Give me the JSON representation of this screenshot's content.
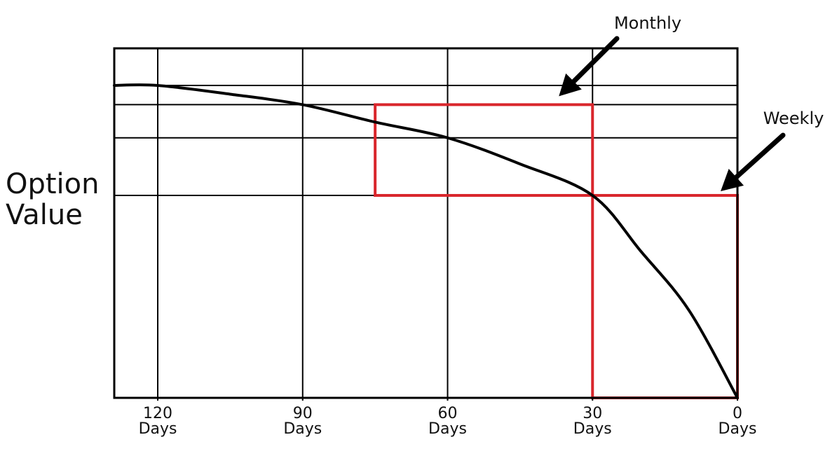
{
  "chart_data": {
    "type": "line",
    "xlabel": "",
    "ylabel": [
      "Option",
      "Value"
    ],
    "x_axis": {
      "direction": "decreasing",
      "ticks": [
        {
          "value": 120,
          "unit": "Days"
        },
        {
          "value": 90,
          "unit": "Days"
        },
        {
          "value": 60,
          "unit": "Days"
        },
        {
          "value": 30,
          "unit": "Days"
        },
        {
          "value": 0,
          "unit": "Days"
        }
      ],
      "xlim": [
        129,
        0
      ]
    },
    "y_axis": {
      "ylim": [
        0,
        1
      ],
      "tick_labels": false,
      "horizontal_grid_values": [
        0.895,
        0.84,
        0.745,
        0.58
      ]
    },
    "grid": true,
    "series": [
      {
        "color": "#000000",
        "points": [
          [
            129,
            0.895
          ],
          [
            120,
            0.895
          ],
          [
            105,
            0.87
          ],
          [
            90,
            0.84
          ],
          [
            75,
            0.79
          ],
          [
            60,
            0.745
          ],
          [
            45,
            0.67
          ],
          [
            30,
            0.58
          ],
          [
            20,
            0.42
          ],
          [
            10,
            0.25
          ],
          [
            0,
            0.0
          ]
        ]
      }
    ],
    "highlight_boxes": [
      {
        "color": "#d9262c",
        "x_range": [
          75,
          30
        ],
        "y_range": [
          0.58,
          0.84
        ]
      },
      {
        "color": "#d9262c",
        "x_range": [
          30,
          0
        ],
        "y_range": [
          0.0,
          0.58
        ]
      }
    ],
    "annotations": [
      {
        "text": "Monthly",
        "points_to": "box-0"
      },
      {
        "text": "Weekly",
        "points_to": "box-1"
      }
    ]
  }
}
